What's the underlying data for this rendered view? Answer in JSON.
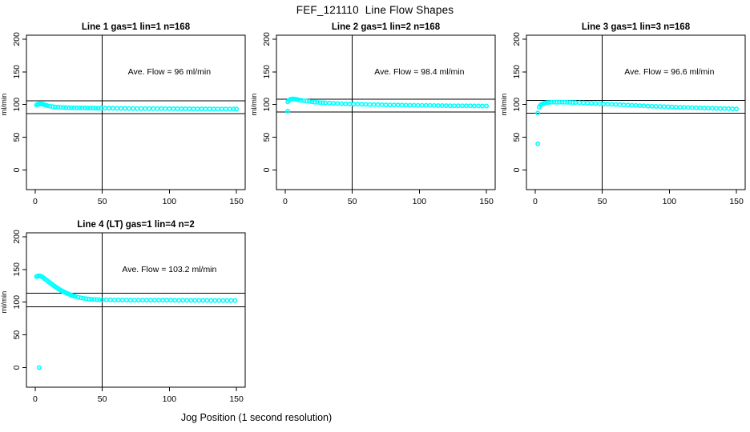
{
  "page": {
    "title": "FEF_121110  Line Flow Shapes",
    "xlabel": "Jog Position (1 second resolution)",
    "background": "#ffffff"
  },
  "colors": {
    "points": "#00ffff",
    "axis": "#000000",
    "text": "#000000"
  },
  "chart_data": [
    {
      "type": "scatter",
      "title": "Line 1 gas=1 lin=1 n=168",
      "annotation": "Ave. Flow =  96  ml/min",
      "ave_flow": 96,
      "ylabel": "ml/min",
      "xticks": [
        0,
        50,
        100,
        150
      ],
      "yticks": [
        0,
        50,
        100,
        150,
        200
      ],
      "xlim": [
        -6.5,
        156.5
      ],
      "ylim": [
        -30,
        206
      ],
      "hlines": [
        105.6,
        86.4
      ],
      "vline": 50,
      "outliers": [],
      "points": [
        [
          1,
          99.5
        ],
        [
          2,
          100.3
        ],
        [
          3,
          101
        ],
        [
          4,
          101
        ],
        [
          5,
          100.8
        ],
        [
          6,
          100.3
        ],
        [
          7,
          99.6
        ],
        [
          8,
          99
        ],
        [
          9,
          98.4
        ],
        [
          11,
          97.5
        ],
        [
          13,
          96.8
        ],
        [
          15,
          96.3
        ],
        [
          17,
          95.9
        ],
        [
          19,
          95.7
        ],
        [
          21,
          95.5
        ],
        [
          23,
          95.3
        ],
        [
          25,
          95.2
        ],
        [
          27,
          95.1
        ],
        [
          29,
          95
        ],
        [
          31,
          94.9
        ],
        [
          33,
          94.8
        ],
        [
          35,
          94.8
        ],
        [
          37,
          94.7
        ],
        [
          39,
          94.7
        ],
        [
          41,
          94.6
        ],
        [
          43,
          94.6
        ],
        [
          45,
          94.5
        ],
        [
          47,
          94.5
        ],
        [
          49,
          94.4
        ],
        [
          52,
          94.4
        ],
        [
          55,
          94.3
        ],
        [
          58,
          94.2
        ],
        [
          61,
          94.2
        ],
        [
          64,
          94.1
        ],
        [
          67,
          94.1
        ],
        [
          70,
          94
        ],
        [
          73,
          94
        ],
        [
          76,
          93.9
        ],
        [
          79,
          93.9
        ],
        [
          82,
          93.9
        ],
        [
          85,
          93.8
        ],
        [
          88,
          93.8
        ],
        [
          91,
          93.7
        ],
        [
          94,
          93.7
        ],
        [
          97,
          93.7
        ],
        [
          100,
          93.6
        ],
        [
          103,
          93.6
        ],
        [
          106,
          93.6
        ],
        [
          109,
          93.5
        ],
        [
          112,
          93.5
        ],
        [
          115,
          93.5
        ],
        [
          118,
          93.4
        ],
        [
          121,
          93.4
        ],
        [
          124,
          93.4
        ],
        [
          127,
          93.4
        ],
        [
          130,
          93.4
        ],
        [
          133,
          93.3
        ],
        [
          136,
          93.3
        ],
        [
          139,
          93.3
        ],
        [
          142,
          93.3
        ],
        [
          145,
          93.3
        ],
        [
          148,
          93.2
        ],
        [
          150,
          93.2
        ]
      ]
    },
    {
      "type": "scatter",
      "title": "Line 2 gas=1 lin=2 n=168",
      "annotation": "Ave. Flow =  98.4  ml/min",
      "ave_flow": 98.4,
      "ylabel": "ml/min",
      "xticks": [
        0,
        50,
        100,
        150
      ],
      "yticks": [
        0,
        50,
        100,
        150,
        200
      ],
      "xlim": [
        -6.5,
        156.5
      ],
      "ylim": [
        -30,
        206
      ],
      "hlines": [
        108.2,
        88.6
      ],
      "vline": 50,
      "outliers": [
        [
          2,
          90
        ]
      ],
      "points": [
        [
          2,
          104
        ],
        [
          3,
          106.5
        ],
        [
          4,
          108
        ],
        [
          5,
          108.5
        ],
        [
          6,
          108.5
        ],
        [
          7,
          108.3
        ],
        [
          8,
          108
        ],
        [
          9,
          107.6
        ],
        [
          10,
          107.2
        ],
        [
          12,
          106.4
        ],
        [
          14,
          105.7
        ],
        [
          16,
          105.1
        ],
        [
          18,
          104.6
        ],
        [
          20,
          104.1
        ],
        [
          22,
          103.7
        ],
        [
          24,
          103.4
        ],
        [
          26,
          103.1
        ],
        [
          28,
          102.8
        ],
        [
          30,
          102.5
        ],
        [
          33,
          102.2
        ],
        [
          36,
          101.9
        ],
        [
          39,
          101.6
        ],
        [
          42,
          101.3
        ],
        [
          45,
          101.1
        ],
        [
          48,
          100.9
        ],
        [
          51,
          100.7
        ],
        [
          54,
          100.5
        ],
        [
          57,
          100.3
        ],
        [
          60,
          100.2
        ],
        [
          63,
          100
        ],
        [
          66,
          99.9
        ],
        [
          69,
          99.8
        ],
        [
          72,
          99.6
        ],
        [
          75,
          99.5
        ],
        [
          78,
          99.4
        ],
        [
          81,
          99.3
        ],
        [
          84,
          99.2
        ],
        [
          87,
          99.1
        ],
        [
          90,
          99
        ],
        [
          93,
          98.9
        ],
        [
          96,
          98.9
        ],
        [
          99,
          98.8
        ],
        [
          102,
          98.7
        ],
        [
          105,
          98.6
        ],
        [
          108,
          98.6
        ],
        [
          111,
          98.5
        ],
        [
          114,
          98.4
        ],
        [
          117,
          98.4
        ],
        [
          120,
          98.3
        ],
        [
          123,
          98.2
        ],
        [
          126,
          98.2
        ],
        [
          129,
          98.1
        ],
        [
          132,
          98.1
        ],
        [
          135,
          98
        ],
        [
          138,
          98
        ],
        [
          141,
          97.9
        ],
        [
          144,
          97.9
        ],
        [
          147,
          97.8
        ],
        [
          150,
          97.8
        ]
      ]
    },
    {
      "type": "scatter",
      "title": "Line 3 gas=1 lin=3 n=168",
      "annotation": "Ave. Flow =  96.6  ml/min",
      "ave_flow": 96.6,
      "ylabel": "ml/min",
      "xticks": [
        0,
        50,
        100,
        150
      ],
      "yticks": [
        0,
        50,
        100,
        150,
        200
      ],
      "xlim": [
        -6.5,
        156.5
      ],
      "ylim": [
        -30,
        206
      ],
      "hlines": [
        106.3,
        86.9
      ],
      "vline": 50,
      "outliers": [
        [
          2,
          40
        ],
        [
          2,
          87
        ]
      ],
      "points": [
        [
          3,
          96
        ],
        [
          4,
          99
        ],
        [
          5,
          100.5
        ],
        [
          6,
          101.5
        ],
        [
          7,
          102.2
        ],
        [
          8,
          102.7
        ],
        [
          9,
          103
        ],
        [
          10,
          103.2
        ],
        [
          12,
          103.5
        ],
        [
          14,
          103.6
        ],
        [
          16,
          103.7
        ],
        [
          18,
          103.7
        ],
        [
          20,
          103.6
        ],
        [
          22,
          103.5
        ],
        [
          24,
          103.4
        ],
        [
          26,
          103.3
        ],
        [
          28,
          103.2
        ],
        [
          30,
          103
        ],
        [
          33,
          102.8
        ],
        [
          36,
          102.5
        ],
        [
          39,
          102.2
        ],
        [
          42,
          101.9
        ],
        [
          45,
          101.6
        ],
        [
          48,
          101.3
        ],
        [
          51,
          101
        ],
        [
          54,
          100.7
        ],
        [
          57,
          100.4
        ],
        [
          60,
          100.1
        ],
        [
          63,
          99.8
        ],
        [
          66,
          99.5
        ],
        [
          69,
          99.2
        ],
        [
          72,
          98.9
        ],
        [
          75,
          98.6
        ],
        [
          78,
          98.3
        ],
        [
          81,
          98
        ],
        [
          84,
          97.7
        ],
        [
          87,
          97.5
        ],
        [
          90,
          97.2
        ],
        [
          93,
          97
        ],
        [
          96,
          96.7
        ],
        [
          99,
          96.5
        ],
        [
          102,
          96.2
        ],
        [
          105,
          96
        ],
        [
          108,
          95.8
        ],
        [
          111,
          95.6
        ],
        [
          114,
          95.4
        ],
        [
          117,
          95.2
        ],
        [
          120,
          95
        ],
        [
          123,
          94.8
        ],
        [
          126,
          94.6
        ],
        [
          129,
          94.4
        ],
        [
          132,
          94.3
        ],
        [
          135,
          94.1
        ],
        [
          138,
          94
        ],
        [
          141,
          93.8
        ],
        [
          144,
          93.7
        ],
        [
          147,
          93.5
        ],
        [
          150,
          93.4
        ]
      ]
    },
    {
      "type": "scatter",
      "title": "Line 4 (LT) gas=1 lin=4 n=2",
      "annotation": "Ave. Flow =  103.2  ml/min",
      "ave_flow": 103.2,
      "ylabel": "ml/min",
      "xticks": [
        0,
        50,
        100,
        150
      ],
      "yticks": [
        0,
        50,
        100,
        150,
        200
      ],
      "xlim": [
        -6.5,
        156.5
      ],
      "ylim": [
        -30,
        206
      ],
      "hlines": [
        113.5,
        92.9
      ],
      "vline": 50,
      "outliers": [
        [
          3,
          0
        ]
      ],
      "points": [
        [
          1,
          139
        ],
        [
          2,
          140
        ],
        [
          3,
          140.2
        ],
        [
          4,
          139.8
        ],
        [
          5,
          138.8
        ],
        [
          6,
          137.5
        ],
        [
          7,
          136
        ],
        [
          8,
          134.4
        ],
        [
          9,
          132.8
        ],
        [
          10,
          131.2
        ],
        [
          11,
          129.6
        ],
        [
          12,
          128
        ],
        [
          13,
          126.5
        ],
        [
          14,
          125
        ],
        [
          15,
          123.6
        ],
        [
          16,
          122.2
        ],
        [
          17,
          120.9
        ],
        [
          18,
          119.6
        ],
        [
          19,
          118.4
        ],
        [
          20,
          117.2
        ],
        [
          21,
          116.1
        ],
        [
          22,
          115.1
        ],
        [
          23,
          114.1
        ],
        [
          24,
          113.2
        ],
        [
          25,
          112.3
        ],
        [
          26,
          111.5
        ],
        [
          27,
          110.7
        ],
        [
          28,
          110
        ],
        [
          29,
          109.3
        ],
        [
          30,
          108.7
        ],
        [
          32,
          107.6
        ],
        [
          34,
          106.7
        ],
        [
          36,
          105.9
        ],
        [
          38,
          105.3
        ],
        [
          40,
          104.8
        ],
        [
          42,
          104.4
        ],
        [
          44,
          104.1
        ],
        [
          46,
          103.9
        ],
        [
          48,
          103.7
        ],
        [
          50,
          103.6
        ],
        [
          53,
          103.5
        ],
        [
          56,
          103.4
        ],
        [
          59,
          103.3
        ],
        [
          62,
          103.3
        ],
        [
          65,
          103.2
        ],
        [
          68,
          103.2
        ],
        [
          71,
          103.1
        ],
        [
          74,
          103.1
        ],
        [
          77,
          103.1
        ],
        [
          80,
          103
        ],
        [
          83,
          103
        ],
        [
          86,
          103
        ],
        [
          89,
          103
        ],
        [
          92,
          102.9
        ],
        [
          95,
          102.9
        ],
        [
          98,
          102.9
        ],
        [
          101,
          102.9
        ],
        [
          104,
          102.8
        ],
        [
          107,
          102.8
        ],
        [
          110,
          102.8
        ],
        [
          113,
          102.8
        ],
        [
          116,
          102.7
        ],
        [
          119,
          102.7
        ],
        [
          122,
          102.7
        ],
        [
          125,
          102.7
        ],
        [
          128,
          102.7
        ],
        [
          131,
          102.6
        ],
        [
          134,
          102.6
        ],
        [
          137,
          102.6
        ],
        [
          140,
          102.6
        ],
        [
          143,
          102.5
        ],
        [
          146,
          102.5
        ],
        [
          149,
          102.5
        ]
      ]
    }
  ]
}
